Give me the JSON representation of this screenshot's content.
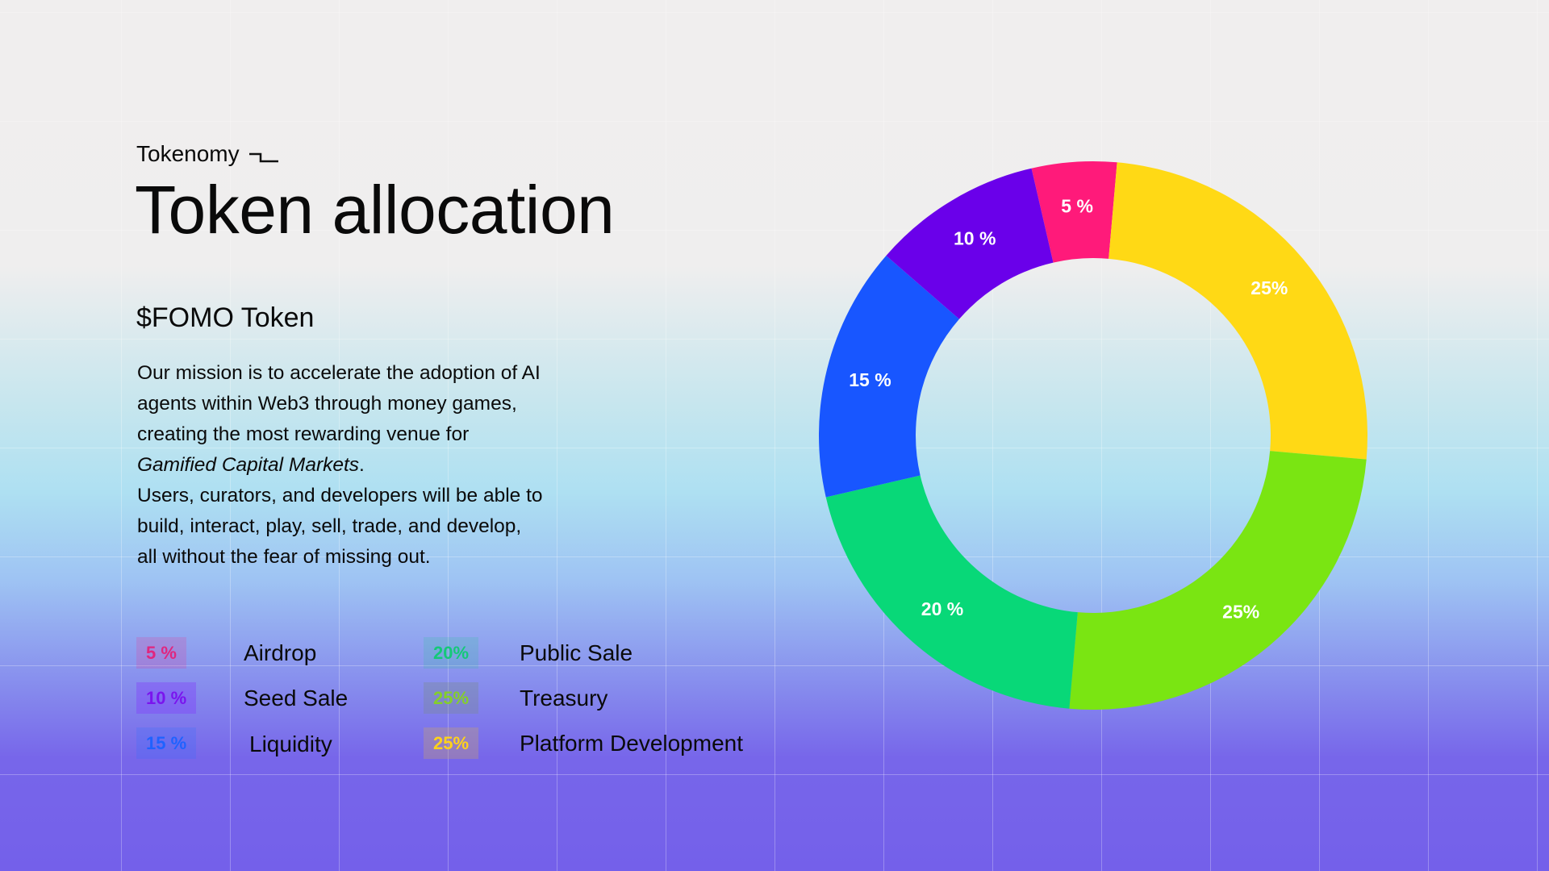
{
  "header": {
    "eyebrow": "Tokenomy",
    "title": "Token allocation"
  },
  "token": {
    "name": "$FOMO Token",
    "description_lines": [
      "Our mission is to accelerate the adoption of AI",
      "agents within Web3 through money games,",
      "creating the most rewarding venue for",
      "Gamified Capital Markets",
      "Users, curators, and developers will be able to",
      "build, interact, play, sell, trade, and develop,",
      "all without the fear of missing out."
    ],
    "description_italic_suffix": "."
  },
  "colors": {
    "airdrop": "#ff1a7a",
    "seed_sale": "#6a00ea",
    "liquidity": "#1856ff",
    "public_sale": "#08d878",
    "treasury": "#7ae512",
    "platform_development": "#ffd915"
  },
  "legend": [
    {
      "badge": "5 %",
      "label": "Airdrop"
    },
    {
      "badge": "10 %",
      "label": "Seed Sale"
    },
    {
      "badge": "15 %",
      "label": "Liquidity"
    },
    {
      "badge": "20%",
      "label": "Public Sale"
    },
    {
      "badge": "25%",
      "label": "Treasury"
    },
    {
      "badge": "25%",
      "label": "Platform Development"
    }
  ],
  "chart_data": {
    "type": "pie",
    "donut": true,
    "categories": [
      "Airdrop",
      "Platform Development",
      "Treasury",
      "Public Sale",
      "Liquidity",
      "Seed Sale"
    ],
    "values": [
      5,
      25,
      25,
      20,
      15,
      10
    ],
    "data_labels": [
      "5 %",
      "25%",
      "25%",
      "20 %",
      "15 %",
      "10 %"
    ],
    "colors": [
      "#ff1a7a",
      "#ffd915",
      "#7ae512",
      "#08d878",
      "#1856ff",
      "#6a00ea"
    ],
    "start_angle_deg": -13,
    "direction": "clockwise"
  }
}
